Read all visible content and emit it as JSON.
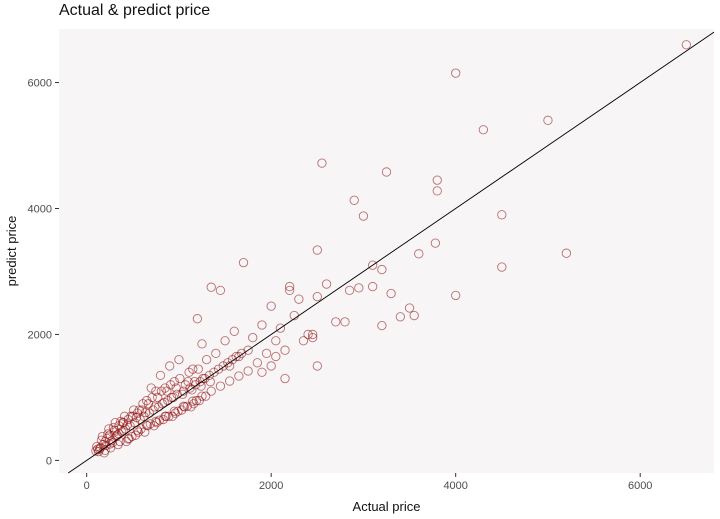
{
  "chart_data": {
    "type": "scatter",
    "title": "Actual & predict price",
    "xlabel": "Actual price",
    "ylabel": "predict price",
    "xlim": [
      -300,
      6800
    ],
    "ylim": [
      -200,
      6850
    ],
    "x_ticks": [
      0,
      2000,
      4000,
      6000
    ],
    "y_ticks": [
      0,
      2000,
      4000,
      6000
    ],
    "x_tick_labels": [
      "0",
      "2000",
      "4000",
      "6000"
    ],
    "y_tick_labels": [
      "0",
      "2000",
      "4000",
      "6000"
    ],
    "grid": false,
    "legend": "none",
    "reference_line": {
      "slope": 1,
      "intercept": 0,
      "color": "#000000"
    },
    "series": [
      {
        "x": [
          6500,
          4000,
          4300,
          5000,
          2550,
          3250,
          2900,
          3800,
          3800,
          3000,
          4500,
          3780,
          2500,
          5200,
          3600,
          4500,
          3100,
          4000,
          3200,
          3500,
          3300,
          2200,
          2600,
          2200,
          3400,
          3200,
          2400,
          3550,
          2800,
          3100,
          1700,
          1450,
          2950,
          2850,
          2500,
          2700,
          2450,
          2250,
          2100,
          2000,
          2300,
          1900,
          1800,
          1600,
          1350,
          1200,
          1950,
          2500,
          1500,
          1650,
          1750,
          2150,
          1850,
          1250,
          2050,
          1550,
          1300,
          1400,
          900,
          1000,
          1100,
          1150,
          800,
          850,
          950,
          750,
          700,
          650,
          600,
          550,
          500,
          450,
          400,
          350,
          300,
          250,
          200,
          180,
          150,
          120,
          100,
          220,
          280,
          330,
          380,
          420,
          470,
          520,
          580,
          620,
          680,
          720,
          780,
          820,
          880,
          920,
          980,
          1050,
          1120,
          1180,
          1230,
          1280,
          1330,
          1380,
          1430,
          1480,
          1530,
          1580,
          1620,
          1680,
          240,
          310,
          360,
          410,
          460,
          510,
          560,
          610,
          660,
          710,
          760,
          810,
          860,
          910,
          960,
          1010,
          1060,
          1110,
          1160,
          1210,
          190,
          260,
          300,
          340,
          390,
          430,
          480,
          530,
          570,
          630,
          670,
          730,
          770,
          830,
          870,
          930,
          970,
          1030,
          1070,
          1130,
          1170,
          1220,
          1260,
          140,
          160,
          210,
          230,
          270,
          290,
          320,
          370,
          400,
          440,
          490,
          540,
          590,
          640,
          690,
          740,
          790,
          840,
          890,
          940,
          990,
          1040,
          1090,
          1140,
          1190,
          1240,
          1290,
          1340,
          110,
          130,
          170,
          200,
          250,
          350,
          450,
          550,
          650,
          750,
          850,
          950,
          1050,
          1150,
          1250,
          1350,
          1450,
          1550,
          1650,
          1750,
          2050,
          2150,
          2350,
          2450,
          1900,
          2000
        ],
        "y": [
          6600,
          6150,
          5250,
          5400,
          4720,
          4580,
          4130,
          4450,
          4280,
          3880,
          3900,
          3450,
          3340,
          3290,
          3280,
          3070,
          3100,
          2620,
          3030,
          2420,
          2650,
          2760,
          2800,
          2700,
          2280,
          2140,
          2000,
          2300,
          2200,
          2760,
          3140,
          2700,
          2740,
          2700,
          2600,
          2200,
          1950,
          2300,
          2100,
          2450,
          2560,
          2150,
          1950,
          2050,
          2750,
          2250,
          1700,
          1500,
          1900,
          1650,
          1750,
          1300,
          1550,
          1850,
          1900,
          1500,
          1600,
          1700,
          1500,
          1600,
          1250,
          1450,
          1350,
          1150,
          1250,
          1100,
          1150,
          950,
          800,
          750,
          700,
          650,
          600,
          550,
          450,
          400,
          300,
          250,
          200,
          180,
          150,
          350,
          280,
          400,
          450,
          500,
          550,
          600,
          650,
          700,
          750,
          800,
          850,
          900,
          950,
          1000,
          1050,
          1100,
          1150,
          1200,
          1250,
          1300,
          1350,
          1400,
          1450,
          1500,
          1550,
          1600,
          1650,
          1700,
          500,
          600,
          300,
          700,
          350,
          800,
          450,
          900,
          550,
          1000,
          600,
          1100,
          700,
          1200,
          750,
          1300,
          850,
          1400,
          900,
          1450,
          120,
          200,
          480,
          250,
          600,
          300,
          700,
          400,
          800,
          450,
          900,
          550,
          1000,
          650,
          1100,
          700,
          1150,
          800,
          1200,
          850,
          1250,
          950,
          1300,
          180,
          320,
          240,
          420,
          310,
          520,
          380,
          620,
          470,
          560,
          380,
          680,
          500,
          760,
          580,
          850,
          640,
          920,
          700,
          1000,
          780,
          1050,
          860,
          1120,
          950,
          1180,
          1020,
          1250,
          220,
          140,
          380,
          160,
          260,
          420,
          340,
          480,
          560,
          620,
          700,
          780,
          860,
          940,
          1020,
          1100,
          1180,
          1260,
          1340,
          1420,
          1650,
          1750,
          1900,
          2000,
          1400,
          1500
        ]
      }
    ]
  },
  "colors": {
    "point_stroke": "#8b0000",
    "panel_bg": "#f7f5f6",
    "reference_line": "#000000"
  }
}
